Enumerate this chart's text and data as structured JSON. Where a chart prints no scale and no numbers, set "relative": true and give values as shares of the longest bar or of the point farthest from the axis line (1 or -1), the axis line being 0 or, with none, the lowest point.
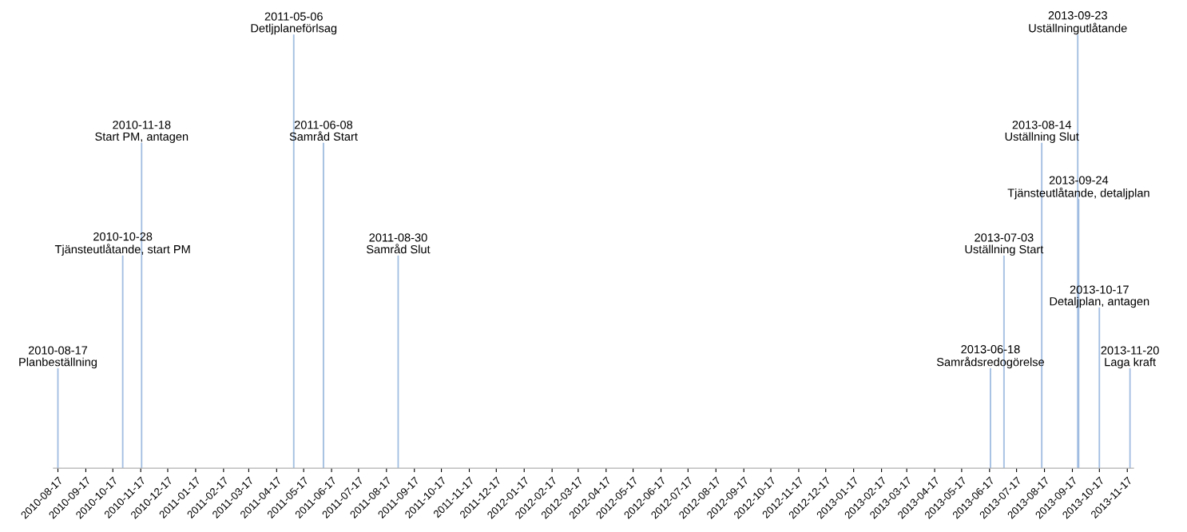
{
  "chart_data": {
    "type": "bar",
    "relative": true,
    "grid": false,
    "legend": false,
    "color": "#9dbbe0",
    "x": [
      "2010-08-17",
      "2010-10-28",
      "2010-11-18",
      "2011-05-06",
      "2011-06-08",
      "2011-08-30",
      "2013-06-18",
      "2013-07-03",
      "2013-08-14",
      "2013-09-23",
      "2013-09-24",
      "2013-10-17",
      "2013-11-20"
    ],
    "values": [
      0.23,
      0.49,
      0.75,
      1,
      0.75,
      0.49,
      0.23,
      0.49,
      0.75,
      1,
      0.62,
      0.37,
      0.23
    ],
    "annotations": [
      {
        "text": "2010-08-17\nPlanbeställning",
        "x": "2010-08-17",
        "y": 0.23
      },
      {
        "text": "2010-10-28\nTjänsteutlåtande, start PM",
        "x": "2010-10-28",
        "y": 0.49
      },
      {
        "text": "2010-11-18\nStart PM, antagen",
        "x": "2010-11-18",
        "y": 0.75
      },
      {
        "text": "2011-05-06\nDetljplaneförlsag",
        "x": "2011-05-06",
        "y": 1
      },
      {
        "text": "2011-06-08\nSamråd Start",
        "x": "2011-06-08",
        "y": 0.75
      },
      {
        "text": "2011-08-30\nSamråd Slut",
        "x": "2011-08-30",
        "y": 0.49
      },
      {
        "text": "2013-06-18\nSamrådsredogörelse",
        "x": "2013-06-18",
        "y": 0.23
      },
      {
        "text": "2013-07-03\nUställning Start",
        "x": "2013-07-03",
        "y": 0.49
      },
      {
        "text": "2013-08-14\nUställning Slut",
        "x": "2013-08-14",
        "y": 0.75
      },
      {
        "text": "2013-09-23\nUställningutlåtande",
        "x": "2013-09-23",
        "y": 1
      },
      {
        "text": "2013-09-24\nTjänsteutlåtande, detaljplan",
        "x": "2013-09-24",
        "y": 0.62
      },
      {
        "text": "2013-10-17\nDetaljplan, antagen",
        "x": "2013-10-17",
        "y": 0.37
      },
      {
        "text": "2013-11-20\nLaga kraft",
        "x": "2013-11-20",
        "y": 0.23
      }
    ],
    "xlim": [
      "2010-08-12",
      "2013-11-24"
    ],
    "xticks": [
      "2010-08-17",
      "2010-09-17",
      "2010-10-17",
      "2010-11-17",
      "2010-12-17",
      "2011-01-17",
      "2011-02-17",
      "2011-03-17",
      "2011-04-17",
      "2011-05-17",
      "2011-06-17",
      "2011-07-17",
      "2011-08-17",
      "2011-09-17",
      "2011-10-17",
      "2011-11-17",
      "2011-12-17",
      "2012-01-17",
      "2012-02-17",
      "2012-03-17",
      "2012-04-17",
      "2012-05-17",
      "2012-06-17",
      "2012-07-17",
      "2012-08-17",
      "2012-09-17",
      "2012-10-17",
      "2012-11-17",
      "2012-12-17",
      "2013-01-17",
      "2013-02-17",
      "2013-03-17",
      "2013-04-17",
      "2013-05-17",
      "2013-06-17",
      "2013-07-17",
      "2013-08-17",
      "2013-09-17",
      "2013-10-17",
      "2013-11-17"
    ]
  }
}
